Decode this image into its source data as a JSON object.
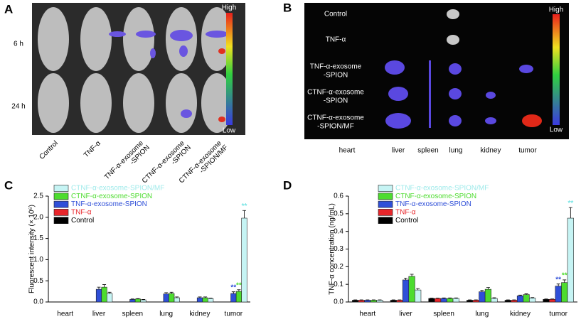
{
  "panels": {
    "a": {
      "label": "A",
      "times": [
        "6 h",
        "24 h"
      ],
      "high": "High",
      "low": "Low",
      "columns": [
        [
          "Control"
        ],
        [
          "TNF-α"
        ],
        [
          "TNF-α-exosome",
          "-SPION"
        ],
        [
          "CTNF-α-exosome",
          "-SPION"
        ],
        [
          "CTNF-α-exosome",
          "-SPION/MF"
        ]
      ]
    },
    "b": {
      "label": "B",
      "high": "High",
      "low": "Low",
      "rows": [
        [
          "Control"
        ],
        [
          "TNF-α"
        ],
        [
          "TNF-α-exosome",
          "-SPION"
        ],
        [
          "CTNF-α-exosome",
          "-SPION"
        ],
        [
          "CTNF-α-exosome",
          "-SPION/MF"
        ]
      ],
      "columns": [
        "heart",
        "liver",
        "spleen",
        "lung",
        "kidney",
        "tumor"
      ]
    }
  },
  "chart_data": [
    {
      "type": "bar",
      "label": "C",
      "y_label": "Fluorescent intensity (× 10⁶)",
      "categories": [
        "heart",
        "liver",
        "spleen",
        "lung",
        "kidney",
        "tumor"
      ],
      "ylim": [
        0,
        2.5
      ],
      "yticks": [
        {
          "value": 0,
          "label": "0.0"
        },
        0.5,
        {
          "value": 1,
          "label": "1.0"
        },
        1.5,
        {
          "value": 2,
          "label": "2.0"
        },
        2.5
      ],
      "series": [
        {
          "name": "Control",
          "color": "#000000",
          "values": [
            0,
            0,
            0,
            0,
            0,
            0
          ],
          "errors": [
            0,
            0,
            0,
            0,
            0,
            0
          ]
        },
        {
          "name": "TNF-α",
          "color": "#e8262b",
          "values": [
            0,
            0,
            0,
            0,
            0,
            0
          ],
          "errors": [
            0,
            0,
            0,
            0,
            0,
            0
          ]
        },
        {
          "name": "TNF-α-exosome-SPION",
          "color": "#2f4fd8",
          "values": [
            0,
            0.3,
            0.06,
            0.19,
            0.1,
            0.2
          ],
          "errors": [
            0,
            0.05,
            0.01,
            0.03,
            0.02,
            0.04
          ],
          "annotations": [
            null,
            null,
            null,
            null,
            null,
            "**"
          ]
        },
        {
          "name": "CTNF-α-exosome-SPION",
          "color": "#4ddc2f",
          "values": [
            0,
            0.35,
            0.07,
            0.2,
            0.1,
            0.25
          ],
          "errors": [
            0,
            0.06,
            0.01,
            0.03,
            0.02,
            0.04
          ],
          "annotations": [
            null,
            null,
            null,
            null,
            null,
            "**"
          ]
        },
        {
          "name": "CTNF-α-exosome-SPION/MF",
          "color": "#c6f4f4",
          "values": [
            0,
            0.2,
            0.05,
            0.1,
            0.08,
            1.98
          ],
          "errors": [
            0,
            0.03,
            0.01,
            0.02,
            0.01,
            0.18
          ],
          "annotations": [
            null,
            null,
            null,
            null,
            null,
            "**"
          ]
        }
      ]
    },
    {
      "type": "bar",
      "label": "D",
      "y_label": "TNF-α concentration (ng/mL)",
      "categories": [
        "heart",
        "liver",
        "spleen",
        "lung",
        "kidney",
        "tumor"
      ],
      "ylim": [
        0,
        0.6
      ],
      "yticks": [
        {
          "value": 0,
          "label": "0.0"
        },
        0.1,
        0.2,
        0.3,
        0.4,
        0.5,
        0.6
      ],
      "series": [
        {
          "name": "Control",
          "color": "#000000",
          "values": [
            0.01,
            0.01,
            0.02,
            0.01,
            0.01,
            0.015
          ],
          "errors": [
            0.002,
            0.002,
            0.002,
            0.002,
            0.002,
            0.002
          ]
        },
        {
          "name": "TNF-α",
          "color": "#e8262b",
          "values": [
            0.01,
            0.01,
            0.02,
            0.01,
            0.01,
            0.015
          ],
          "errors": [
            0.002,
            0.002,
            0.002,
            0.002,
            0.002,
            0.002
          ]
        },
        {
          "name": "TNF-α-exosome-SPION",
          "color": "#2f4fd8",
          "values": [
            0.01,
            0.125,
            0.02,
            0.058,
            0.035,
            0.09
          ],
          "errors": [
            0.002,
            0.01,
            0.003,
            0.008,
            0.004,
            0.012
          ],
          "annotations": [
            null,
            null,
            null,
            null,
            null,
            "**"
          ]
        },
        {
          "name": "CTNF-α-exosome-SPION",
          "color": "#4ddc2f",
          "values": [
            0.01,
            0.145,
            0.02,
            0.072,
            0.042,
            0.11
          ],
          "errors": [
            0.002,
            0.012,
            0.003,
            0.01,
            0.004,
            0.015
          ],
          "annotations": [
            null,
            null,
            null,
            null,
            null,
            "**"
          ]
        },
        {
          "name": "CTNF-α-exosome-SPION/MF",
          "color": "#c6f4f4",
          "values": [
            0.01,
            0.068,
            0.02,
            0.02,
            0.022,
            0.475
          ],
          "errors": [
            0.002,
            0.008,
            0.003,
            0.004,
            0.003,
            0.06
          ],
          "annotations": [
            null,
            null,
            null,
            null,
            null,
            "**"
          ]
        }
      ]
    }
  ]
}
